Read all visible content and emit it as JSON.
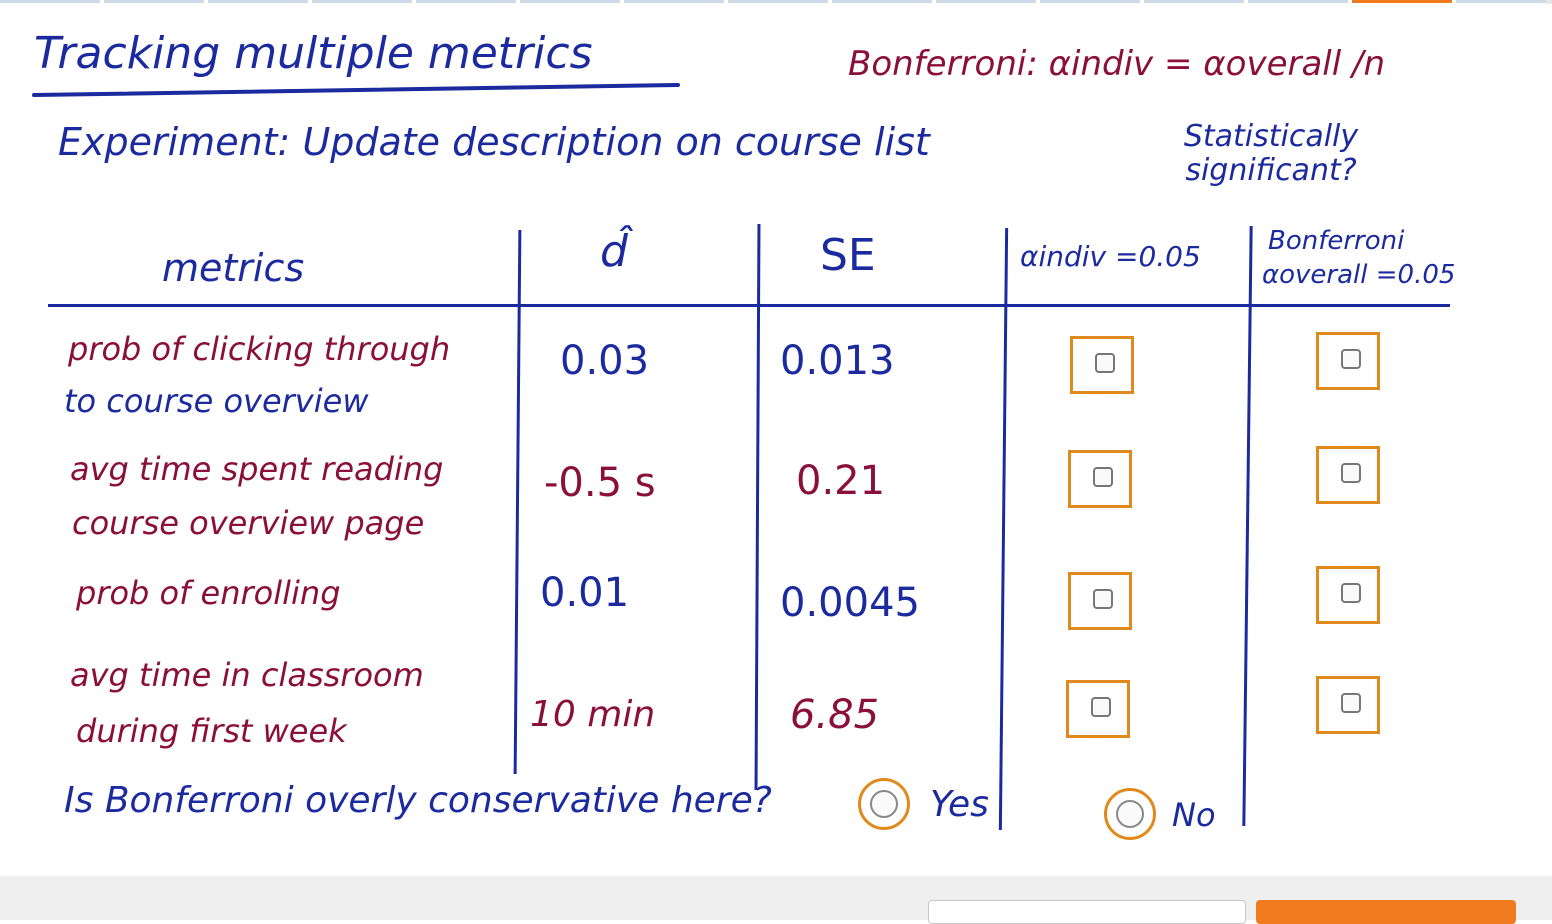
{
  "colors": {
    "ink_blue": "#1b2a9e",
    "ink_red": "#8a0f3a",
    "answer_orange": "#e08a1e",
    "primary_button": "#f07a1d",
    "footer_bg": "#efefef"
  },
  "whiteboard": {
    "title": "Tracking multiple metrics",
    "bonferroni_formula": "Bonferroni: αindiv = αoverall /n",
    "experiment": "Experiment: Update description on course list",
    "statistically_significant": "Statistically significant?",
    "headers": {
      "metrics": "metrics",
      "d_hat": "d̂",
      "se": "SE",
      "alpha_indiv": "αindiv =0.05",
      "bonferroni_line1": "Bonferroni",
      "bonferroni_line2": "αoverall =0.05"
    },
    "rows": [
      {
        "metric_line1": "prob of clicking through",
        "metric_line2": "to course overview",
        "d_hat": "0.03",
        "se": "0.013"
      },
      {
        "metric_line1": "avg time spent reading",
        "metric_line2": "course overview page",
        "d_hat": "-0.5 s",
        "se": "0.21"
      },
      {
        "metric_line1": "prob of enrolling",
        "metric_line2": "",
        "d_hat": "0.01",
        "se": "0.0045"
      },
      {
        "metric_line1": "avg time in classroom",
        "metric_line2": "during first week",
        "d_hat": "10 min",
        "se": "6.85"
      }
    ],
    "question": "Is Bonferroni overly conservative here?",
    "options": {
      "yes": "Yes",
      "no": "No"
    }
  },
  "answer_state": {
    "indiv_checked": [
      false,
      false,
      false,
      false
    ],
    "bonferroni_checked": [
      false,
      false,
      false,
      false
    ],
    "selected_option": ""
  }
}
